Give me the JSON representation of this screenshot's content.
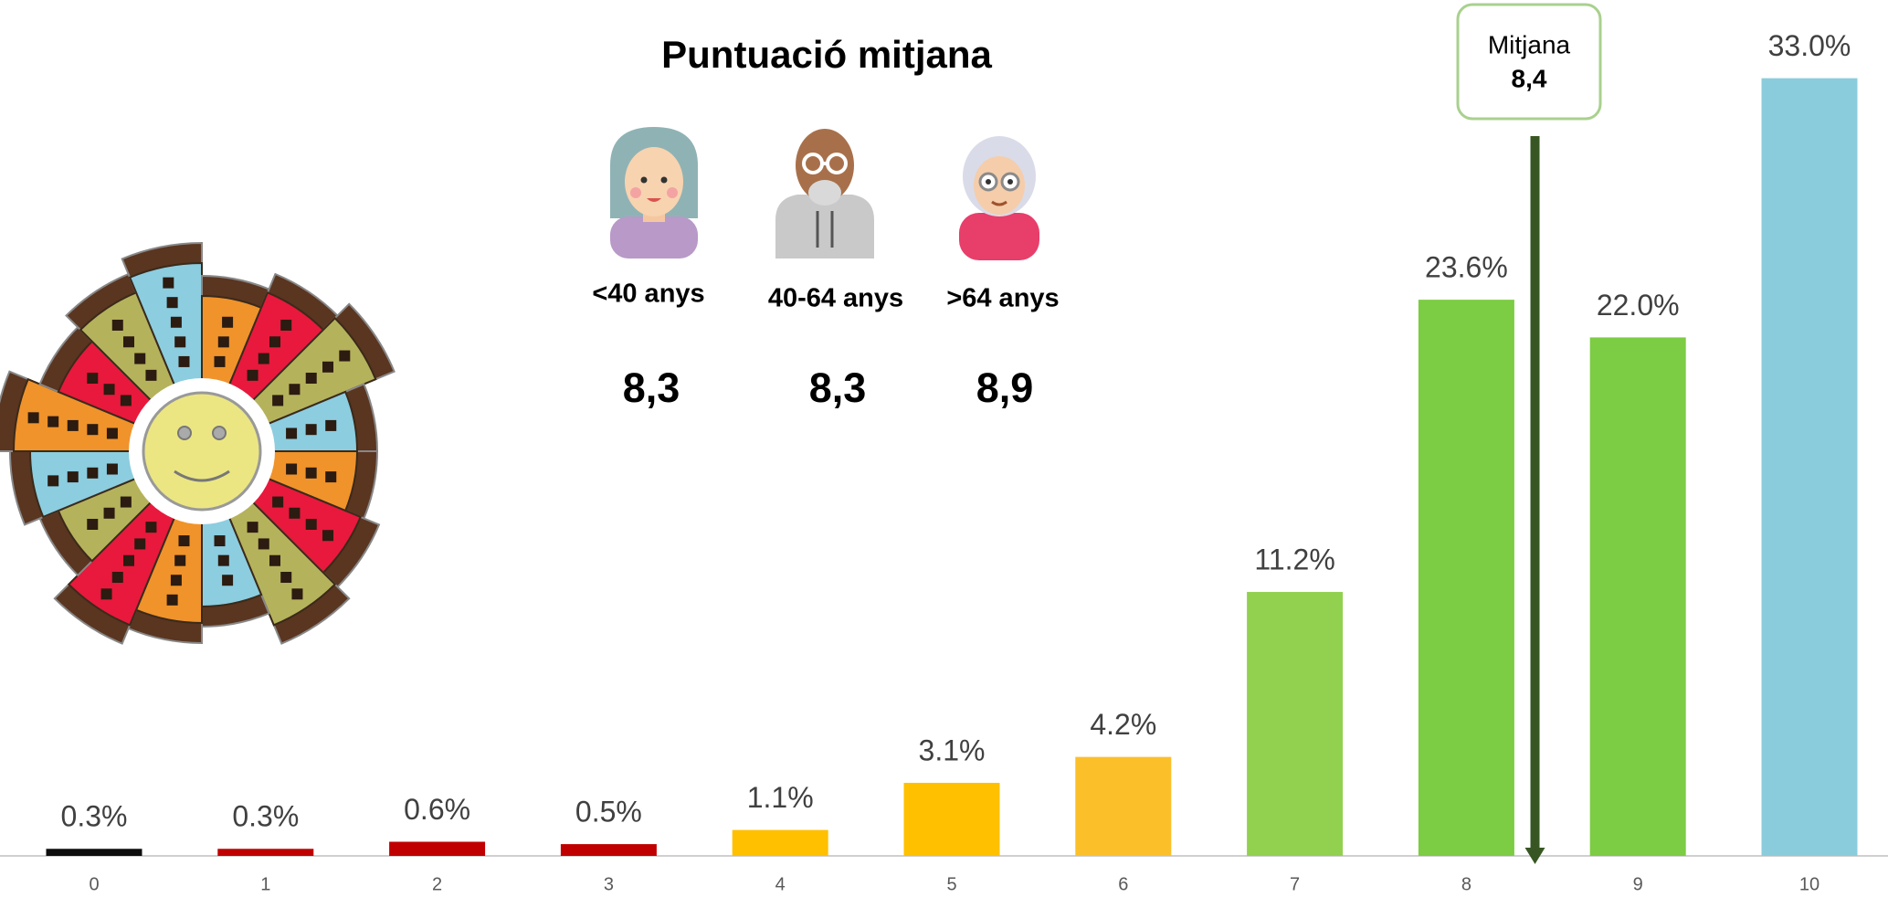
{
  "chart_data": {
    "type": "bar",
    "title": "Puntuació mitjana",
    "categories": [
      "0",
      "1",
      "2",
      "3",
      "4",
      "5",
      "6",
      "7",
      "8",
      "9",
      "10"
    ],
    "values": [
      0.3,
      0.3,
      0.6,
      0.5,
      1.1,
      3.1,
      4.2,
      11.2,
      23.6,
      22.0,
      33.0
    ],
    "value_labels": [
      "0.3%",
      "0.3%",
      "0.6%",
      "0.5%",
      "1.1%",
      "3.1%",
      "4.2%",
      "11.2%",
      "23.6%",
      "22.0%",
      "33.0%"
    ],
    "colors": [
      "#0d0d0d",
      "#c00000",
      "#c00000",
      "#c00000",
      "#ffc000",
      "#ffc000",
      "#fbbf2a",
      "#92d050",
      "#7ccc44",
      "#7ccc44",
      "#8accdc"
    ],
    "mean": {
      "label_text": "Mitjana",
      "value": {
        "value": 8.4,
        "label": "8,4"
      }
    },
    "groups": [
      {
        "label": "<40 anys",
        "score": "8,3"
      },
      {
        "label": "40-64 anys",
        "score": "8,3"
      },
      {
        "label": ">64 anys",
        "score": "8,9"
      }
    ]
  }
}
